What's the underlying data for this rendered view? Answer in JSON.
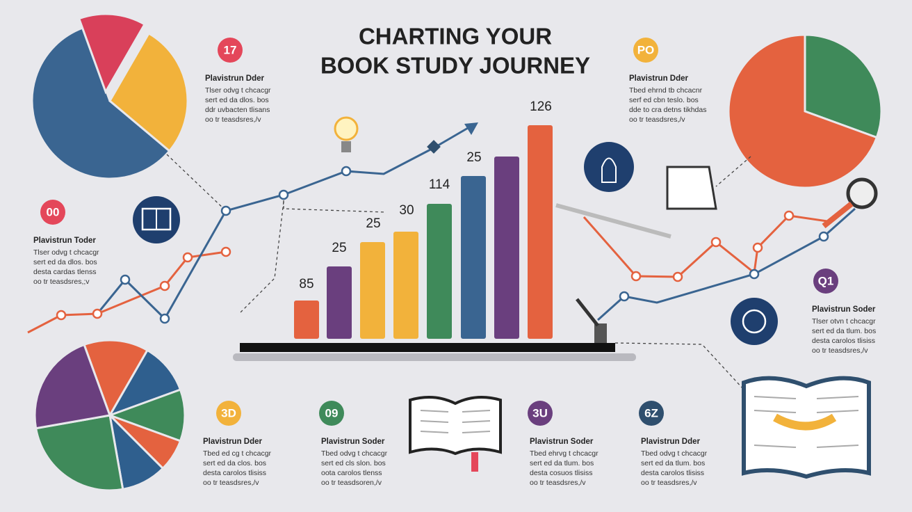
{
  "title": [
    "CHARTING YOUR",
    "BOOK STUDY JOURNEY"
  ],
  "bar_labels": [
    "85",
    "25",
    "25",
    "30",
    "114",
    "25",
    "126"
  ],
  "callouts": [
    {
      "badge": "17",
      "heading": "Plavistrun Dder",
      "lines": [
        "Tlser odvg t chcacgr",
        "sert ed da dlos. bos",
        "ddr uvbacten tlisans",
        "oo tr teasdsres,/v"
      ]
    },
    {
      "badge": "PO",
      "heading": "Plavistrun Dder",
      "lines": [
        "Tbed ehrnd tb chcacnr",
        "serf ed cbn teslo. bos",
        "dde to cra detns tikhdas",
        "oo tr teasdsres,/v"
      ]
    },
    {
      "badge": "00",
      "heading": "Plavistrun Toder",
      "lines": [
        "Tlser odvg t chcacgr",
        "sert ed da dlos. bos",
        "desta cardas tlenss",
        "oo tr teasdsres,;v"
      ]
    },
    {
      "badge": "Q1",
      "heading": "Plavistrun Soder",
      "lines": [
        "Tlser otvn t chcacgr",
        "sert ed da tlum. bos",
        "desta carolos tlisiss",
        "oo tr teasdsres,/v"
      ]
    },
    {
      "badge": "3D",
      "heading": "Plavistrun Dder",
      "lines": [
        "Tbed ed cg t chcacgr",
        "sert ed da clos. bos",
        "desta carolos tlisiss",
        "oo tr teasdsres,/v"
      ]
    },
    {
      "badge": "09",
      "heading": "Plavistrun Soder",
      "lines": [
        "Tbed odvg t chcacgr",
        "sert ed cls slon. bos",
        "oota carolos tlenss",
        "oo tr teasdsoren,/v"
      ]
    },
    {
      "badge": "3U",
      "heading": "Plavistrun Soder",
      "lines": [
        "Tbed ehrvg t chcacgr",
        "sert ed da tlum. bos",
        "desta cosuos tlisiss",
        "oo tr teasdsres,/v"
      ]
    },
    {
      "badge": "6Z",
      "heading": "Plavistrun Dder",
      "lines": [
        "Tbed odvg t chcacgr",
        "sert ed da tlum. bos",
        "desta carolos tlisiss",
        "oo tr teasdsres,/v"
      ]
    }
  ]
}
